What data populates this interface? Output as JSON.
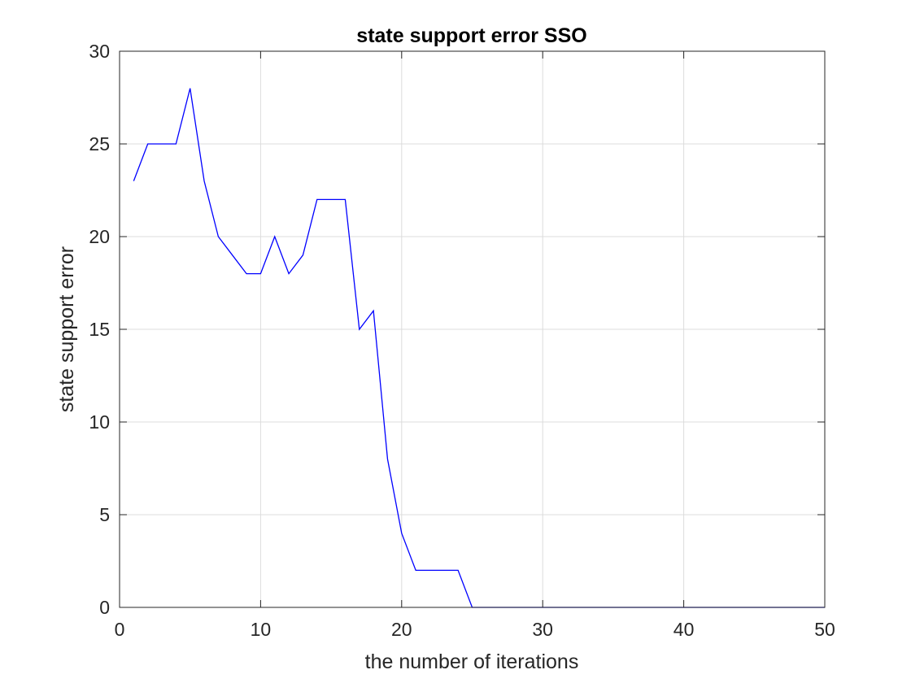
{
  "chart_data": {
    "type": "line",
    "title": "state support error SSO",
    "xlabel": "the number of iterations",
    "ylabel": "state support error",
    "xlim": [
      0,
      50
    ],
    "ylim": [
      0,
      30
    ],
    "x_ticks": [
      0,
      10,
      20,
      30,
      40,
      50
    ],
    "y_ticks": [
      0,
      5,
      10,
      15,
      20,
      25,
      30
    ],
    "grid": true,
    "legend": "none",
    "colors": {
      "line": "#0000ff",
      "grid": "#dcdcdc",
      "axes": "#262626",
      "background": "#ffffff"
    },
    "series": [
      {
        "x": [
          1,
          2,
          3,
          4,
          5,
          6,
          7,
          8,
          9,
          10,
          11,
          12,
          13,
          14,
          15,
          16,
          17,
          18,
          19,
          20,
          21,
          22,
          23,
          24,
          25,
          26,
          27,
          28,
          29,
          30,
          31,
          32,
          33,
          34,
          35,
          36,
          37,
          38,
          39,
          40,
          41,
          42,
          43,
          44,
          45,
          46,
          47,
          48,
          49,
          50
        ],
        "values": [
          23,
          25,
          25,
          25,
          28,
          23,
          20,
          19,
          18,
          18,
          20,
          18,
          19,
          22,
          22,
          22,
          15,
          16,
          8,
          4,
          2,
          2,
          2,
          2,
          0,
          0,
          0,
          0,
          0,
          0,
          0,
          0,
          0,
          0,
          0,
          0,
          0,
          0,
          0,
          0,
          0,
          0,
          0,
          0,
          0,
          0,
          0,
          0,
          0,
          0
        ]
      }
    ]
  }
}
